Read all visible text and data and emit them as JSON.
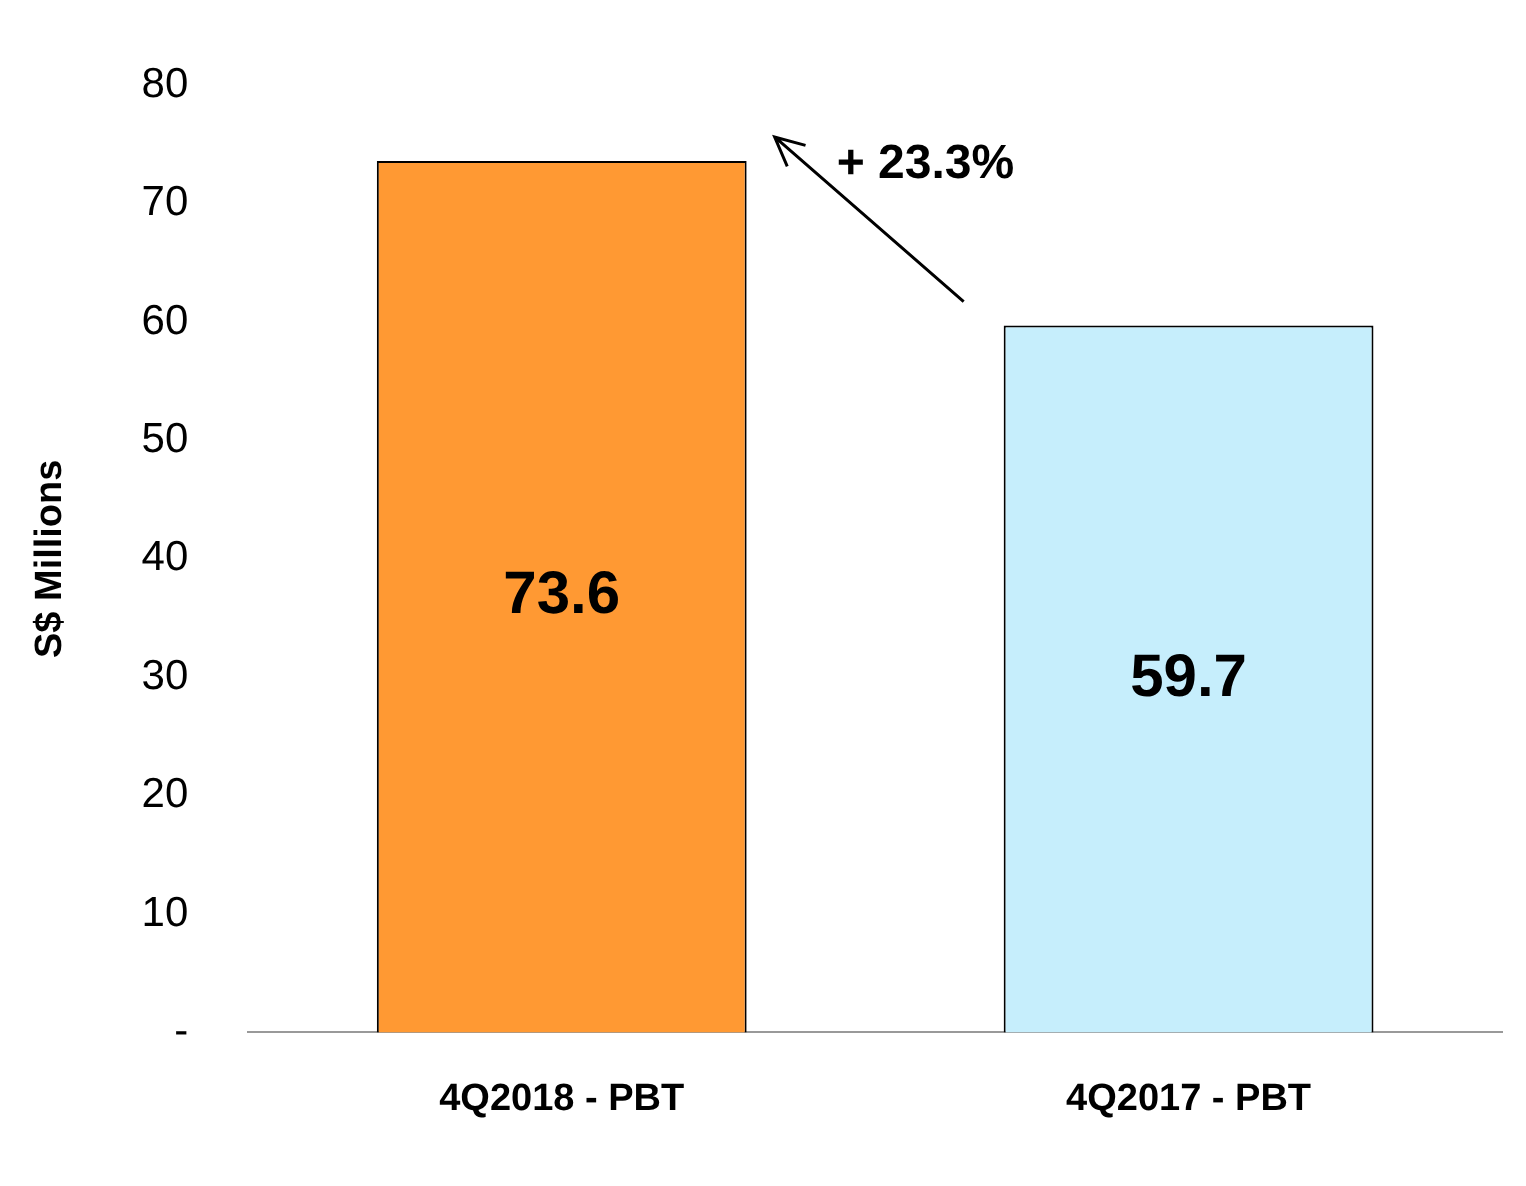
{
  "chart_data": {
    "type": "bar",
    "ylabel": "S$ Millions",
    "categories": [
      "4Q2018 - PBT",
      "4Q2017 - PBT"
    ],
    "values": [
      73.6,
      59.7
    ],
    "colors": [
      "#ff9933",
      "#c6eefc"
    ],
    "ylim": [
      0,
      80
    ],
    "yticks": [
      {
        "value": 0,
        "label": "-"
      },
      10,
      20,
      30,
      40,
      50,
      60,
      70,
      80
    ],
    "grid": false,
    "legend": false,
    "data_labels": true,
    "annotations": [
      "+ 23.3%"
    ]
  }
}
